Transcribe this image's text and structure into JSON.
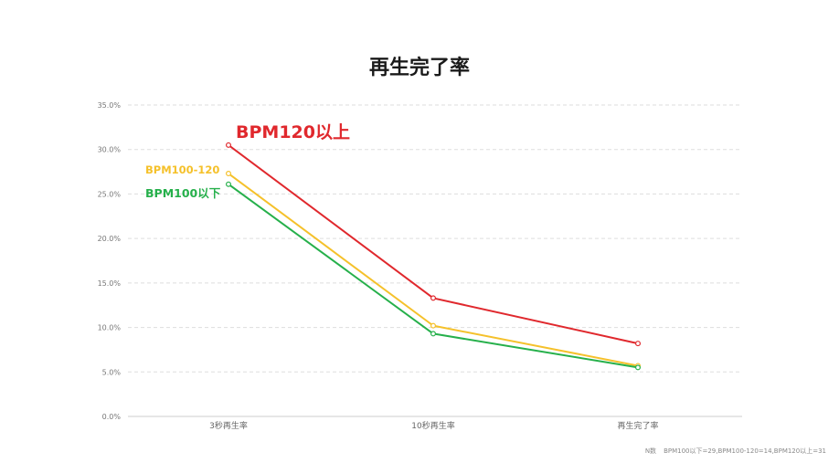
{
  "chart_data": {
    "type": "line",
    "title": "再生完了率",
    "categories": [
      "3秒再生率",
      "10秒再生率",
      "再生完了率"
    ],
    "ylim": [
      0,
      35
    ],
    "yticks": [
      "0.0%",
      "5.0%",
      "10.0%",
      "15.0%",
      "20.0%",
      "25.0%",
      "30.0%",
      "35.0%"
    ],
    "grid": true,
    "series": [
      {
        "name": "BPM120以上",
        "color": "#e0282d",
        "values": [
          30.5,
          13.3,
          8.2
        ]
      },
      {
        "name": "BPM100-120",
        "color": "#f5c12b",
        "values": [
          27.3,
          10.2,
          5.7
        ]
      },
      {
        "name": "BPM100以下",
        "color": "#26b04b",
        "values": [
          26.1,
          9.3,
          5.5
        ]
      }
    ]
  },
  "footnote": {
    "label": "N数",
    "text": "BPM100以下=29,BPM100-120=14,BPM120以上=31"
  }
}
